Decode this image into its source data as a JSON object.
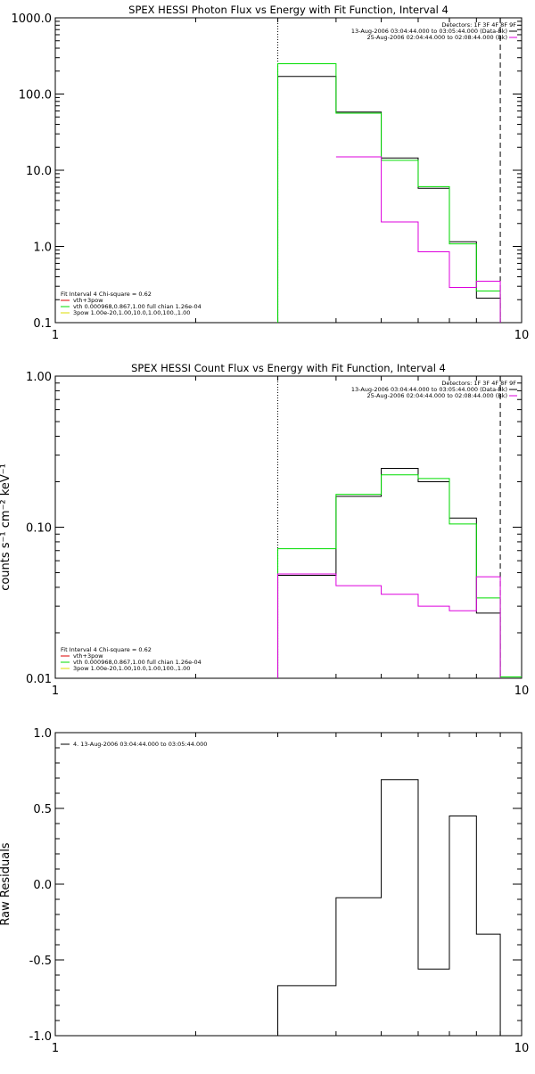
{
  "chart_data": [
    {
      "type": "line",
      "title": "SPEX HESSI Photon Flux vs Energy with Fit Function, Interval 4",
      "xlabel": "",
      "ylabel": "",
      "x_scale": "log",
      "y_scale": "log",
      "xlim": [
        1,
        10
      ],
      "ylim": [
        0.1,
        1000
      ],
      "x_tick_labels": [
        {
          "v": 1,
          "label": "1"
        },
        {
          "v": 10,
          "label": "10"
        }
      ],
      "y_tick_labels": [
        {
          "v": 0.1,
          "label": "0.1"
        },
        {
          "v": 1,
          "label": "1.0"
        },
        {
          "v": 10,
          "label": "10.0"
        },
        {
          "v": 100,
          "label": "100.0"
        },
        {
          "v": 1000,
          "label": "1000.0"
        }
      ],
      "bin_edges": [
        3.0,
        4.0,
        5.0,
        6.0,
        7.0,
        8.0,
        9.0
      ],
      "series": [
        {
          "color": "#000000",
          "values": [
            170,
            58,
            14.5,
            5.8,
            1.15,
            0.21
          ]
        },
        {
          "color": "#00dd00",
          "values": [
            250,
            56,
            13.5,
            6.1,
            1.08,
            0.26
          ]
        },
        {
          "color": "#dd00dd",
          "values": [
            null,
            15,
            2.1,
            0.85,
            0.29,
            0.35
          ]
        }
      ],
      "dotted_line_x": 3.0,
      "dashed_line_x": 9.0,
      "legend_right": [
        {
          "text": "Detectors: 1F 3F 4F 8F 9F",
          "color": null
        },
        {
          "text": "13-Aug-2006 03:04:44.000 to 03:05:44.000 (Data-Bk)",
          "color": "#000000"
        },
        {
          "text": "25-Aug-2006 02:04:44.000 to 02:08:44.000 (Bk)",
          "color": "#dd00dd"
        }
      ],
      "legend_left": [
        {
          "text": "Fit Interval 4   Chi-square = 0.62",
          "color": null
        },
        {
          "text": "vth+3pow",
          "color": "#dd0000"
        },
        {
          "text": "vth 0.000968,0.867,1.00  full chian 1.26e-04",
          "color": "#00dd00"
        },
        {
          "text": "3pow 1.00e-20,1.00,10.0,1.00,100.,1.00",
          "color": "#dddd00"
        }
      ]
    },
    {
      "type": "line",
      "title": "SPEX HESSI Count Flux vs Energy with Fit Function, Interval 4",
      "xlabel": "",
      "ylabel": "counts s⁻¹ cm⁻² keV⁻¹",
      "x_scale": "log",
      "y_scale": "log",
      "xlim": [
        1,
        10
      ],
      "ylim": [
        0.01,
        1
      ],
      "x_tick_labels": [
        {
          "v": 1,
          "label": "1"
        },
        {
          "v": 10,
          "label": "10"
        }
      ],
      "y_tick_labels": [
        {
          "v": 0.01,
          "label": "0.01"
        },
        {
          "v": 0.1,
          "label": "0.10"
        },
        {
          "v": 1,
          "label": "1.00"
        }
      ],
      "bin_edges": [
        3.0,
        4.0,
        5.0,
        6.0,
        7.0,
        8.0,
        9.0
      ],
      "series": [
        {
          "color": "#000000",
          "values": [
            0.048,
            0.16,
            0.245,
            0.2,
            0.115,
            0.027
          ]
        },
        {
          "color": "#00dd00",
          "values": [
            0.072,
            0.165,
            0.222,
            0.21,
            0.105,
            0.034
          ]
        },
        {
          "color": "#dd00dd",
          "values": [
            0.049,
            0.041,
            0.036,
            0.03,
            0.028,
            0.047
          ]
        }
      ],
      "tail": {
        "x_end": 10.0,
        "value": 0.0102,
        "color": "#00dd00"
      },
      "dotted_line_x": 3.0,
      "dashed_line_x": 9.0,
      "legend_right": [
        {
          "text": "Detectors: 1F 3F 4F 8F 9F",
          "color": null
        },
        {
          "text": "13-Aug-2006 03:04:44.000 to 03:05:44.000 (Data-Bk)",
          "color": "#000000"
        },
        {
          "text": "25-Aug-2006 02:04:44.000 to 02:08:44.000 (Bk)",
          "color": "#dd00dd"
        }
      ],
      "legend_left": [
        {
          "text": "Fit Interval 4   Chi-square = 0.62",
          "color": null
        },
        {
          "text": "vth+3pow",
          "color": "#dd0000"
        },
        {
          "text": "vth 0.000968,0.867,1.00  full chian 1.26e-04",
          "color": "#00dd00"
        },
        {
          "text": "3pow 1.00e-20,1.00,10.0,1.00,100.,1.00",
          "color": "#dddd00"
        }
      ]
    },
    {
      "type": "line",
      "title": "",
      "xlabel": "",
      "ylabel": "Raw Residuals",
      "x_scale": "log",
      "y_scale": "linear",
      "xlim": [
        1,
        10
      ],
      "ylim": [
        -1,
        1
      ],
      "x_tick_labels": [
        {
          "v": 1,
          "label": "1"
        },
        {
          "v": 10,
          "label": "10"
        }
      ],
      "y_tick_labels": [
        {
          "v": -1,
          "label": "-1.0"
        },
        {
          "v": -0.5,
          "label": "-0.5"
        },
        {
          "v": 0,
          "label": "0.0"
        },
        {
          "v": 0.5,
          "label": "0.5"
        },
        {
          "v": 1,
          "label": "1.0"
        }
      ],
      "bin_edges": [
        3.0,
        4.0,
        5.0,
        6.0,
        7.0,
        8.0,
        9.0
      ],
      "series": [
        {
          "color": "#000000",
          "values": [
            -0.67,
            -0.09,
            0.69,
            -0.56,
            0.45,
            -0.33
          ]
        }
      ],
      "legend_left": [
        {
          "text": "4. 13-Aug-2006 03:04:44.000 to 03:05:44.000",
          "color": "#000000"
        }
      ]
    }
  ]
}
